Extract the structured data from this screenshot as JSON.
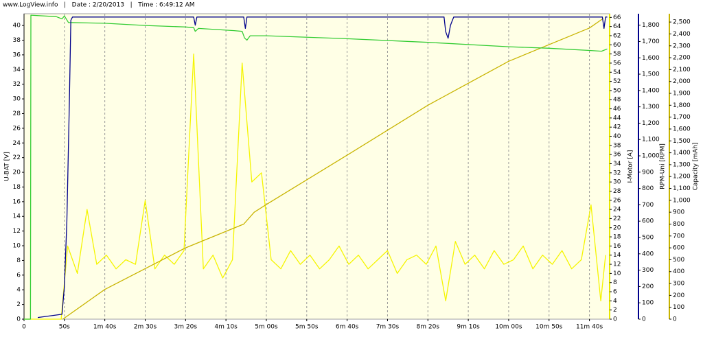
{
  "header": "www.LogView.info   |   Date : 2/20/2013   |   Time : 6:49:12 AM",
  "chart_data": {
    "type": "line",
    "xlim": [
      0,
      725
    ],
    "xticks": [
      0,
      {
        "value": 50,
        "label": "50s"
      },
      {
        "value": 100,
        "label": "1m 40s"
      },
      {
        "value": 150,
        "label": "2m 30s"
      },
      {
        "value": 200,
        "label": "3m 20s"
      },
      {
        "value": 250,
        "label": "4m 10s"
      },
      {
        "value": 300,
        "label": "5m 00s"
      },
      {
        "value": 350,
        "label": "5m 50s"
      },
      {
        "value": 400,
        "label": "6m 40s"
      },
      {
        "value": 450,
        "label": "7m 30s"
      },
      {
        "value": 500,
        "label": "8m 20s"
      },
      {
        "value": 550,
        "label": "9m 10s"
      },
      {
        "value": 600,
        "label": "10m 00s"
      },
      {
        "value": 650,
        "label": "10m 50s"
      },
      {
        "value": 700,
        "label": "11m 40s"
      }
    ],
    "grid": true,
    "y_axes": [
      {
        "label": "U-BAT [V]",
        "color": "#000000",
        "lim": [
          0,
          41.6
        ],
        "ticks": [
          0,
          2,
          4,
          6,
          8,
          10,
          12,
          14,
          16,
          18,
          20,
          22,
          24,
          26,
          28,
          30,
          32,
          34,
          36,
          38,
          40
        ]
      },
      {
        "label": "I-Motor [A]",
        "color": "#e8e800",
        "lim": [
          0,
          66.8
        ],
        "ticks": [
          0,
          2,
          4,
          6,
          8,
          10,
          12,
          14,
          16,
          18,
          20,
          22,
          24,
          26,
          28,
          30,
          32,
          34,
          36,
          38,
          40,
          42,
          44,
          46,
          48,
          50,
          52,
          54,
          56,
          58,
          60,
          62,
          64,
          66
        ]
      },
      {
        "label": "RPM-Uni [RPM]",
        "color": "#00008b",
        "lim": [
          0,
          1870
        ],
        "ticks": [
          0,
          100,
          200,
          300,
          400,
          500,
          600,
          700,
          800,
          900,
          {
            "value": 1000,
            "label": "1,000"
          },
          {
            "value": 1100,
            "label": "1,100"
          },
          {
            "value": 1200,
            "label": "1,200"
          },
          {
            "value": 1300,
            "label": "1,300"
          },
          {
            "value": 1400,
            "label": "1,400"
          },
          {
            "value": 1500,
            "label": "1,500"
          },
          {
            "value": 1600,
            "label": "1,600"
          },
          {
            "value": 1700,
            "label": "1,700"
          },
          {
            "value": 1800,
            "label": "1,800"
          }
        ]
      },
      {
        "label": "Capacity [mAh]",
        "color": "#c8b400",
        "lim": [
          0,
          2570
        ],
        "ticks": [
          0,
          100,
          200,
          300,
          400,
          500,
          600,
          700,
          800,
          900,
          {
            "value": 1000,
            "label": "1,000"
          },
          {
            "value": 1100,
            "label": "1,100"
          },
          {
            "value": 1200,
            "label": "1,200"
          },
          {
            "value": 1300,
            "label": "1,300"
          },
          {
            "value": 1400,
            "label": "1,400"
          },
          {
            "value": 1500,
            "label": "1,500"
          },
          {
            "value": 1600,
            "label": "1,600"
          },
          {
            "value": 1700,
            "label": "1,700"
          },
          {
            "value": 1800,
            "label": "1,800"
          },
          {
            "value": 1900,
            "label": "1,900"
          },
          {
            "value": 2000,
            "label": "2,000"
          },
          {
            "value": 2100,
            "label": "2,100"
          },
          {
            "value": 2200,
            "label": "2,200"
          },
          {
            "value": 2300,
            "label": "2,300"
          },
          {
            "value": 2400,
            "label": "2,400"
          },
          {
            "value": 2500,
            "label": "2,500"
          }
        ]
      }
    ],
    "series": [
      {
        "name": "I-Motor",
        "color": "#f5f500",
        "axis": 1,
        "x": [
          0,
          46,
          50,
          54,
          66,
          78,
          90,
          102,
          114,
          126,
          138,
          150,
          162,
          174,
          186,
          198,
          210,
          222,
          234,
          246,
          258,
          270,
          282,
          294,
          306,
          318,
          330,
          342,
          354,
          366,
          378,
          390,
          402,
          414,
          426,
          438,
          450,
          462,
          474,
          486,
          498,
          510,
          522,
          534,
          546,
          558,
          570,
          582,
          594,
          606,
          618,
          630,
          642,
          654,
          666,
          678,
          690,
          702,
          714,
          720
        ],
        "values": [
          0,
          0,
          8,
          16,
          10,
          24,
          12,
          14,
          11,
          13,
          12,
          26,
          11,
          14,
          12,
          15,
          58,
          11,
          14,
          9,
          13,
          56,
          30,
          32,
          13,
          11,
          15,
          12,
          14,
          11,
          13,
          16,
          12,
          14,
          11,
          13,
          15,
          10,
          13,
          14,
          12,
          16,
          4,
          17,
          12,
          14,
          11,
          15,
          12,
          13,
          16,
          11,
          14,
          12,
          15,
          11,
          13,
          25,
          4,
          14
        ]
      },
      {
        "name": "Capacity",
        "color": "#c8b400",
        "axis": 3,
        "x": [
          48,
          100,
          200,
          272,
          285,
          300,
          400,
          500,
          600,
          700,
          717
        ],
        "values": [
          0,
          250,
          600,
          800,
          900,
          965,
          1380,
          1800,
          2170,
          2450,
          2530
        ]
      },
      {
        "name": "U-BAT",
        "color": "#33cc33",
        "axis": 0,
        "x": [
          0,
          8,
          8.5,
          40,
          47,
          50,
          55,
          100,
          150,
          200,
          210,
          212,
          216,
          260,
          270,
          273,
          276,
          280,
          300,
          400,
          500,
          600,
          650,
          700,
          715,
          722
        ],
        "values": [
          0,
          0,
          41.4,
          41.2,
          40.9,
          41.3,
          40.4,
          40.3,
          40.0,
          39.8,
          39.7,
          39.2,
          39.6,
          39.3,
          39.2,
          38.3,
          38.0,
          38.6,
          38.6,
          38.2,
          37.7,
          37.1,
          36.9,
          36.6,
          36.5,
          36.8
        ]
      },
      {
        "name": "RPM-Uni",
        "color": "#00008b",
        "axis": 2,
        "x": [
          17,
          47,
          50,
          53,
          56,
          58,
          60,
          100,
          210,
          212,
          214,
          272,
          274,
          276,
          520,
          522,
          525,
          528,
          532,
          716,
          718,
          720,
          722
        ],
        "values": [
          10,
          30,
          200,
          600,
          1300,
          1830,
          1850,
          1850,
          1850,
          1800,
          1850,
          1850,
          1780,
          1850,
          1850,
          1760,
          1720,
          1800,
          1850,
          1850,
          1780,
          1850,
          1850
        ]
      }
    ]
  }
}
